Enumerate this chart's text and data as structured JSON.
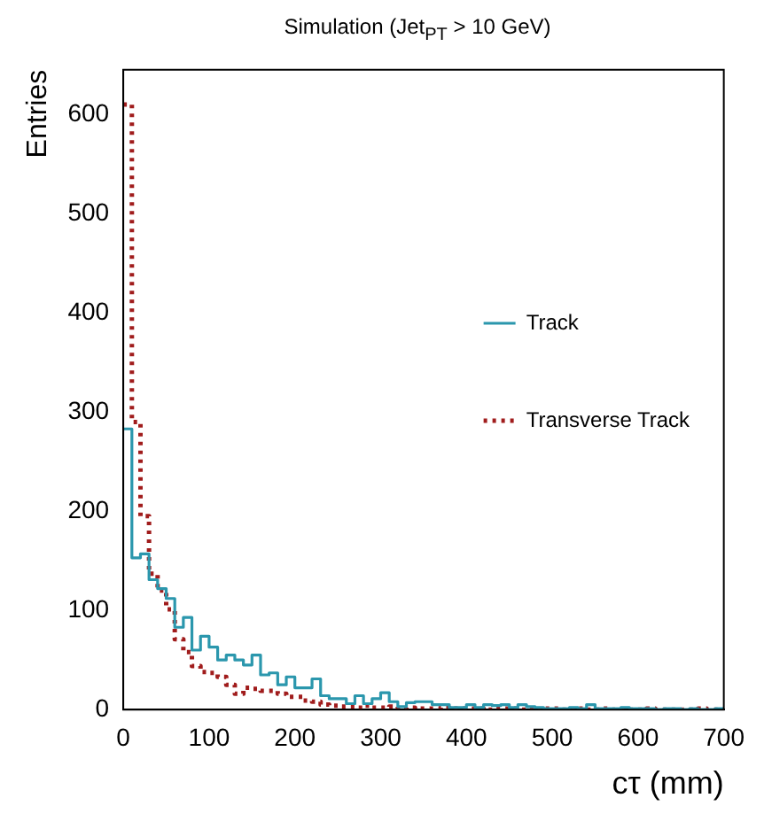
{
  "chart_data": {
    "type": "histogram",
    "title": "Simulation (Jet$_{PT}$ > 10 GeV)",
    "xlabel": "cτ (mm)",
    "ylabel": "Entries",
    "bins": [
      0,
      10,
      20,
      30,
      40,
      50,
      60,
      70,
      80,
      90,
      100,
      110,
      120,
      130,
      140,
      150,
      160,
      170,
      180,
      190,
      200,
      210,
      220,
      230,
      240,
      250,
      260,
      270,
      280,
      290,
      300,
      310,
      320,
      330,
      340,
      350,
      360,
      370,
      380,
      390,
      400,
      410,
      420,
      430,
      440,
      450,
      460,
      470,
      480,
      490,
      500,
      510,
      520,
      530,
      540,
      550,
      560,
      570,
      580,
      590,
      600,
      610,
      620,
      630,
      640,
      650,
      660,
      670,
      680,
      690,
      700
    ],
    "series": [
      {
        "name": "Track",
        "color": "#2b97ad",
        "line_style": "solid",
        "values": [
          283,
          153,
          157,
          131,
          122,
          112,
          83,
          93,
          60,
          74,
          63,
          50,
          55,
          50,
          45,
          55,
          35,
          37,
          25,
          33,
          22,
          22,
          31,
          14,
          11,
          11,
          6,
          14,
          6,
          11,
          17,
          8,
          3,
          7,
          8,
          8,
          5,
          5,
          2,
          2,
          5,
          2,
          5,
          4,
          5,
          2,
          5,
          3,
          2,
          1,
          1,
          1,
          2,
          1,
          5,
          1,
          1,
          1,
          2,
          1,
          1,
          1,
          0,
          1,
          1,
          0,
          1,
          0,
          0,
          1
        ]
      },
      {
        "name": "Transverse Track",
        "color": "#a01c1c",
        "line_style": "dotted",
        "values": [
          610,
          290,
          195,
          137,
          120,
          101,
          71,
          58,
          44,
          38,
          37,
          33,
          25,
          16,
          22,
          21,
          19,
          19,
          16,
          13,
          13,
          9,
          8,
          5,
          4,
          3,
          3,
          2,
          4,
          2,
          2,
          3,
          1,
          2,
          1,
          1,
          1,
          2,
          1,
          1,
          1,
          1,
          0,
          1,
          1,
          1,
          0,
          1,
          0,
          1,
          1,
          0,
          0,
          1,
          0,
          0,
          1,
          0,
          0,
          0,
          0,
          1,
          0,
          0,
          0,
          0,
          0,
          1,
          0,
          0
        ]
      }
    ],
    "xlim": [
      0,
      700
    ],
    "xticks": [
      0,
      100,
      200,
      300,
      400,
      500,
      600,
      700
    ],
    "ylim": [
      0,
      645
    ],
    "yticks": [
      0,
      100,
      200,
      300,
      400,
      500,
      600
    ],
    "grid": false,
    "legend": "right",
    "marker": "none"
  }
}
